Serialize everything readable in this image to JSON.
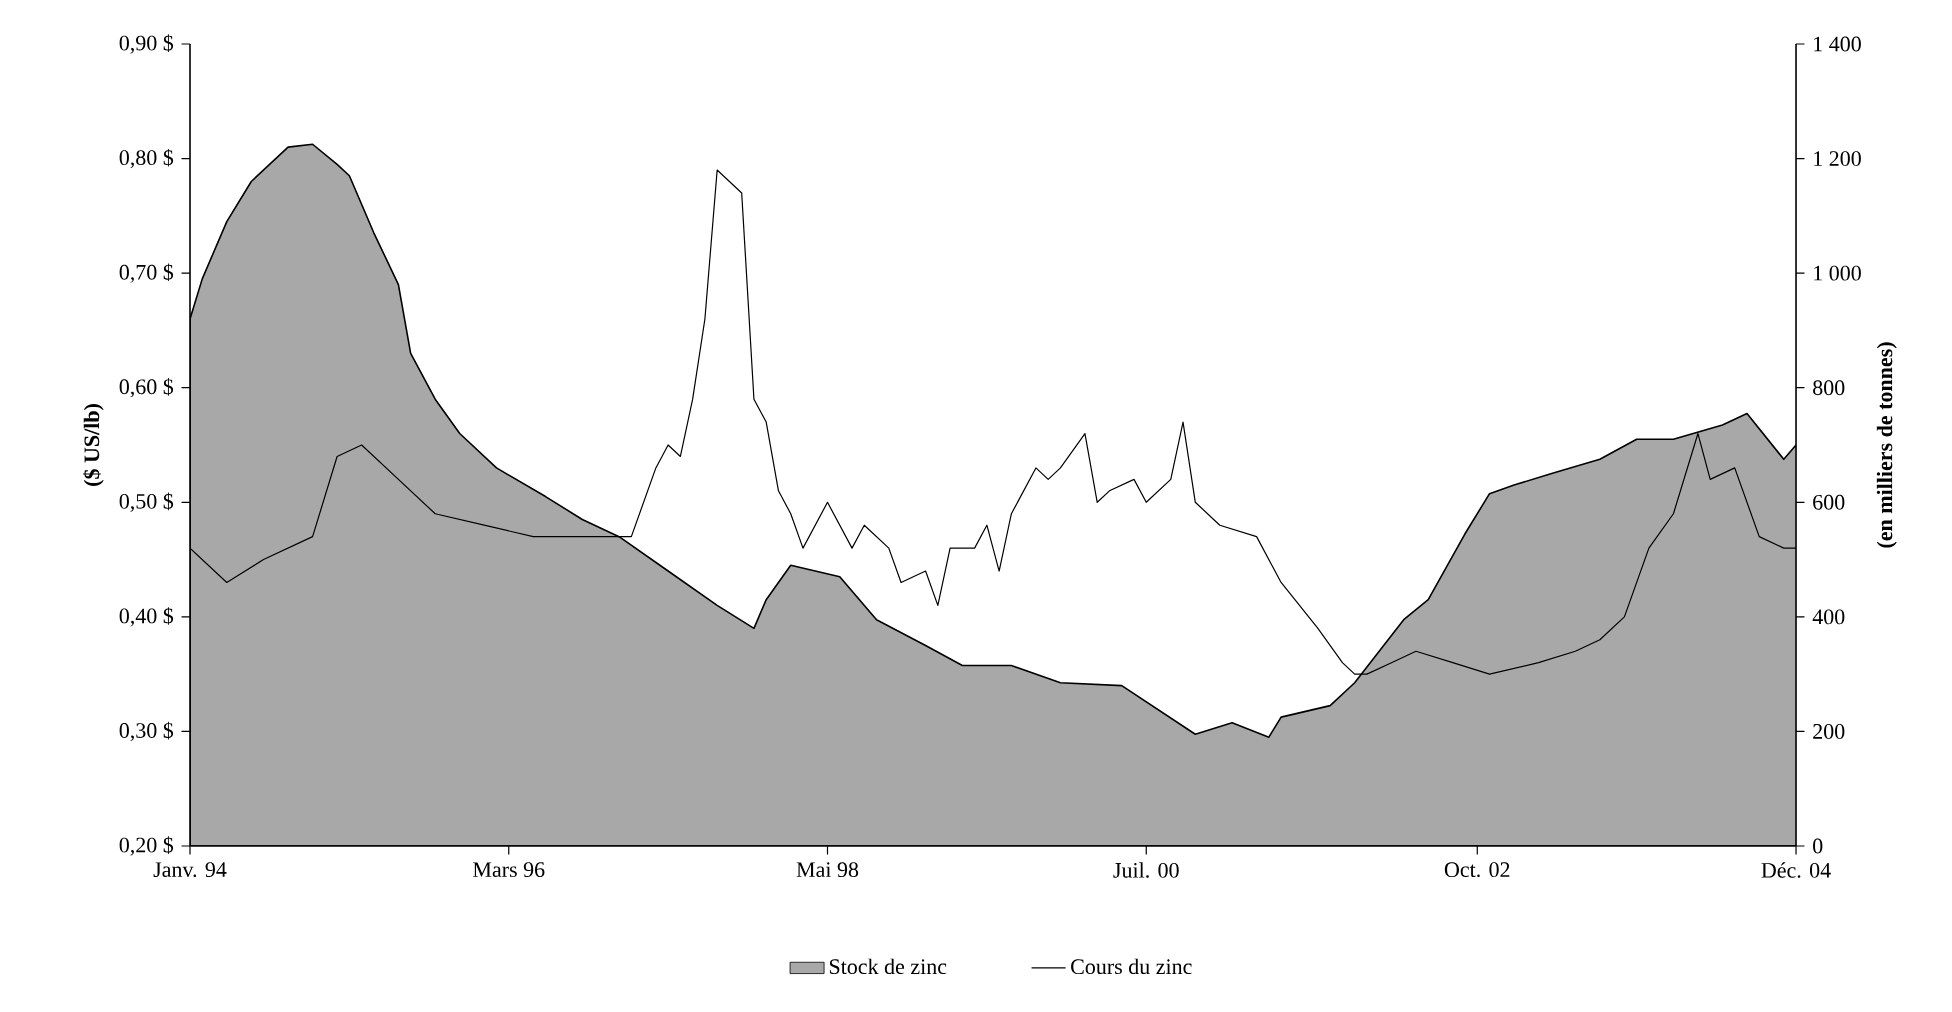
{
  "chart_data": {
    "type": "line",
    "xlim": [
      "1994-01",
      "2004-12"
    ],
    "xticks": [
      {
        "value": "1994-01",
        "label": "Janv. 94"
      },
      {
        "value": "1996-03",
        "label": "Mars 96"
      },
      {
        "value": "1998-05",
        "label": "Mai 98"
      },
      {
        "value": "2000-07",
        "label": "Juil. 00"
      },
      {
        "value": "2002-10",
        "label": "Oct. 02"
      },
      {
        "value": "2004-12",
        "label": "Déc. 04"
      }
    ],
    "ylabel": "($ US/lb)",
    "y2label": "(en milliers de tonnes)",
    "ylim": [
      0.2,
      0.9
    ],
    "yticks": [
      {
        "value": 0.2,
        "label": "0,20 $"
      },
      {
        "value": 0.3,
        "label": "0,30 $"
      },
      {
        "value": 0.4,
        "label": "0,40 $"
      },
      {
        "value": 0.5,
        "label": "0,50 $"
      },
      {
        "value": 0.6,
        "label": "0,60 $"
      },
      {
        "value": 0.7,
        "label": "0,70 $"
      },
      {
        "value": 0.8,
        "label": "0,80 $"
      },
      {
        "value": 0.9,
        "label": "0,90 $"
      }
    ],
    "y2lim": [
      0,
      1400
    ],
    "y2ticks": [
      0,
      200,
      400,
      600,
      800,
      {
        "value": 1000,
        "label": "1 000"
      },
      {
        "value": 1200,
        "label": "1 200"
      },
      {
        "value": 1400,
        "label": "1 400"
      }
    ],
    "legend": "bottom",
    "series": [
      {
        "name": "Stock de zinc",
        "type": "area",
        "axis": "y2",
        "color": "#a8a8a8",
        "x": [
          "1994-01",
          "1994-02",
          "1994-04",
          "1994-06",
          "1994-09",
          "1994-11",
          "1995-01",
          "1995-02",
          "1995-04",
          "1995-06",
          "1995-07",
          "1995-09",
          "1995-11",
          "1996-02",
          "1996-06",
          "1996-09",
          "1996-12",
          "1997-04",
          "1997-08",
          "1997-11",
          "1997-12",
          "1998-02",
          "1998-06",
          "1998-09",
          "1999-01",
          "1999-04",
          "1999-08",
          "1999-12",
          "2000-05",
          "2000-11",
          "2001-02",
          "2001-05",
          "2001-06",
          "2001-10",
          "2001-12",
          "2002-04",
          "2002-06",
          "2002-09",
          "2002-11",
          "2003-01",
          "2003-04",
          "2003-08",
          "2003-11",
          "2004-02",
          "2004-06",
          "2004-08",
          "2004-11",
          "2004-12"
        ],
        "values": [
          920,
          990,
          1090,
          1160,
          1220,
          1225,
          1190,
          1170,
          1070,
          980,
          860,
          780,
          720,
          660,
          610,
          570,
          540,
          480,
          420,
          380,
          430,
          490,
          470,
          395,
          350,
          315,
          315,
          285,
          280,
          195,
          215,
          190,
          225,
          245,
          285,
          395,
          430,
          545,
          615,
          630,
          650,
          675,
          710,
          710,
          735,
          755,
          675,
          700
        ]
      },
      {
        "name": "Cours du zinc",
        "color": "#000000",
        "x": [
          "1994-01",
          "1994-04",
          "1994-07",
          "1994-11",
          "1995-01",
          "1995-03",
          "1995-06",
          "1995-09",
          "1996-01",
          "1996-05",
          "1996-09",
          "1997-01",
          "1997-03",
          "1997-04",
          "1997-05",
          "1997-06",
          "1997-07",
          "1997-08",
          "1997-09",
          "1997-10",
          "1997-11",
          "1997-12",
          "1998-01",
          "1998-02",
          "1998-03",
          "1998-05",
          "1998-07",
          "1998-08",
          "1998-10",
          "1998-11",
          "1999-01",
          "1999-02",
          "1999-03",
          "1999-05",
          "1999-06",
          "1999-07",
          "1999-08",
          "1999-10",
          "1999-11",
          "1999-12",
          "2000-02",
          "2000-03",
          "2000-04",
          "2000-06",
          "2000-07",
          "2000-09",
          "2000-10",
          "2000-11",
          "2001-01",
          "2001-04",
          "2001-06",
          "2001-09",
          "2001-11",
          "2001-12",
          "2002-01",
          "2002-03",
          "2002-05",
          "2002-08",
          "2002-11",
          "2003-03",
          "2003-06",
          "2003-08",
          "2003-10",
          "2003-12",
          "2004-02",
          "2004-04",
          "2004-05",
          "2004-07",
          "2004-09",
          "2004-11",
          "2004-12"
        ],
        "values": [
          0.46,
          0.43,
          0.45,
          0.47,
          0.54,
          0.55,
          0.52,
          0.49,
          0.48,
          0.47,
          0.47,
          0.47,
          0.53,
          0.55,
          0.54,
          0.59,
          0.66,
          0.79,
          0.78,
          0.77,
          0.59,
          0.57,
          0.51,
          0.49,
          0.46,
          0.5,
          0.46,
          0.48,
          0.46,
          0.43,
          0.44,
          0.41,
          0.46,
          0.46,
          0.48,
          0.44,
          0.49,
          0.53,
          0.52,
          0.53,
          0.56,
          0.5,
          0.51,
          0.52,
          0.5,
          0.52,
          0.57,
          0.5,
          0.48,
          0.47,
          0.43,
          0.39,
          0.36,
          0.35,
          0.35,
          0.36,
          0.37,
          0.36,
          0.35,
          0.36,
          0.37,
          0.38,
          0.4,
          0.46,
          0.49,
          0.56,
          0.52,
          0.53,
          0.47,
          0.46,
          0.46
        ]
      }
    ]
  }
}
